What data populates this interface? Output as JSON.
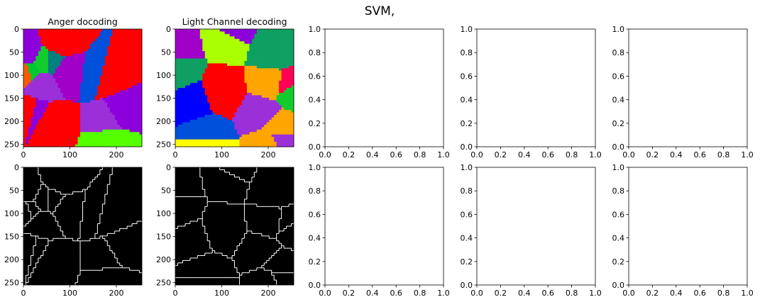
{
  "suptitle": "SVM,",
  "chart_data": [
    {
      "type": "heatmap",
      "title": "Anger docoding",
      "row": 0,
      "col": 0,
      "content": "segmentation-colors",
      "seed": 11,
      "xlim": [
        0,
        255
      ],
      "ylim": [
        255,
        0
      ],
      "xticks": [
        0,
        100,
        200
      ],
      "yticks": [
        0,
        50,
        100,
        150,
        200,
        250
      ]
    },
    {
      "type": "heatmap",
      "title": "Light Channel decoding",
      "row": 0,
      "col": 1,
      "content": "segmentation-colors",
      "seed": 29,
      "xlim": [
        0,
        255
      ],
      "ylim": [
        255,
        0
      ],
      "xticks": [
        0,
        100,
        200
      ],
      "yticks": [
        0,
        50,
        100,
        150,
        200,
        250
      ]
    },
    {
      "type": "line",
      "title": "",
      "row": 0,
      "col": 2,
      "content": "empty",
      "xlim": [
        0,
        1
      ],
      "ylim": [
        0,
        1
      ],
      "xticks": [
        "0.0",
        "0.2",
        "0.4",
        "0.6",
        "0.8",
        "1.0"
      ],
      "yticks": [
        "0.0",
        "0.2",
        "0.4",
        "0.6",
        "0.8",
        "1.0"
      ]
    },
    {
      "type": "line",
      "title": "",
      "row": 0,
      "col": 3,
      "content": "empty",
      "xlim": [
        0,
        1
      ],
      "ylim": [
        0,
        1
      ],
      "xticks": [
        "0.0",
        "0.2",
        "0.4",
        "0.6",
        "0.8",
        "1.0"
      ],
      "yticks": [
        "0.0",
        "0.2",
        "0.4",
        "0.6",
        "0.8",
        "1.0"
      ]
    },
    {
      "type": "line",
      "title": "",
      "row": 0,
      "col": 4,
      "content": "empty",
      "xlim": [
        0,
        1
      ],
      "ylim": [
        0,
        1
      ],
      "xticks": [
        "0.0",
        "0.2",
        "0.4",
        "0.6",
        "0.8",
        "1.0"
      ],
      "yticks": [
        "0.0",
        "0.2",
        "0.4",
        "0.6",
        "0.8",
        "1.0"
      ]
    },
    {
      "type": "heatmap",
      "title": "",
      "row": 1,
      "col": 0,
      "content": "boundaries",
      "seed": 11,
      "xlim": [
        0,
        255
      ],
      "ylim": [
        255,
        0
      ],
      "xticks": [
        0,
        100,
        200
      ],
      "yticks": [
        0,
        50,
        100,
        150,
        200,
        250
      ]
    },
    {
      "type": "heatmap",
      "title": "",
      "row": 1,
      "col": 1,
      "content": "boundaries",
      "seed": 29,
      "xlim": [
        0,
        255
      ],
      "ylim": [
        255,
        0
      ],
      "xticks": [
        0,
        100,
        200
      ],
      "yticks": [
        0,
        50,
        100,
        150,
        200,
        250
      ]
    },
    {
      "type": "line",
      "title": "",
      "row": 1,
      "col": 2,
      "content": "empty",
      "xlim": [
        0,
        1
      ],
      "ylim": [
        0,
        1
      ],
      "xticks": [
        "0.0",
        "0.2",
        "0.4",
        "0.6",
        "0.8",
        "1.0"
      ],
      "yticks": [
        "0.0",
        "0.2",
        "0.4",
        "0.6",
        "0.8",
        "1.0"
      ]
    },
    {
      "type": "line",
      "title": "",
      "row": 1,
      "col": 3,
      "content": "empty",
      "xlim": [
        0,
        1
      ],
      "ylim": [
        0,
        1
      ],
      "xticks": [
        "0.0",
        "0.2",
        "0.4",
        "0.6",
        "0.8",
        "1.0"
      ],
      "yticks": [
        "0.0",
        "0.2",
        "0.4",
        "0.6",
        "0.8",
        "1.0"
      ]
    },
    {
      "type": "line",
      "title": "",
      "row": 1,
      "col": 4,
      "content": "empty",
      "xlim": [
        0,
        1
      ],
      "ylim": [
        0,
        1
      ],
      "xticks": [
        "0.0",
        "0.2",
        "0.4",
        "0.6",
        "0.8",
        "1.0"
      ],
      "yticks": [
        "0.0",
        "0.2",
        "0.4",
        "0.6",
        "0.8",
        "1.0"
      ]
    }
  ],
  "colors": {
    "palette": [
      "#ff0000",
      "#ff5a00",
      "#ffa500",
      "#ffff00",
      "#aaff00",
      "#55ff00",
      "#00c832",
      "#12cc2e",
      "#0fa063",
      "#008080",
      "#0050dc",
      "#1e00ff",
      "#0000ff",
      "#8c00dc",
      "#a000c8",
      "#e6007f",
      "#ff0055",
      "#9b30d9"
    ],
    "boundary": "#ffffff",
    "boundary_bg": "#000000"
  }
}
